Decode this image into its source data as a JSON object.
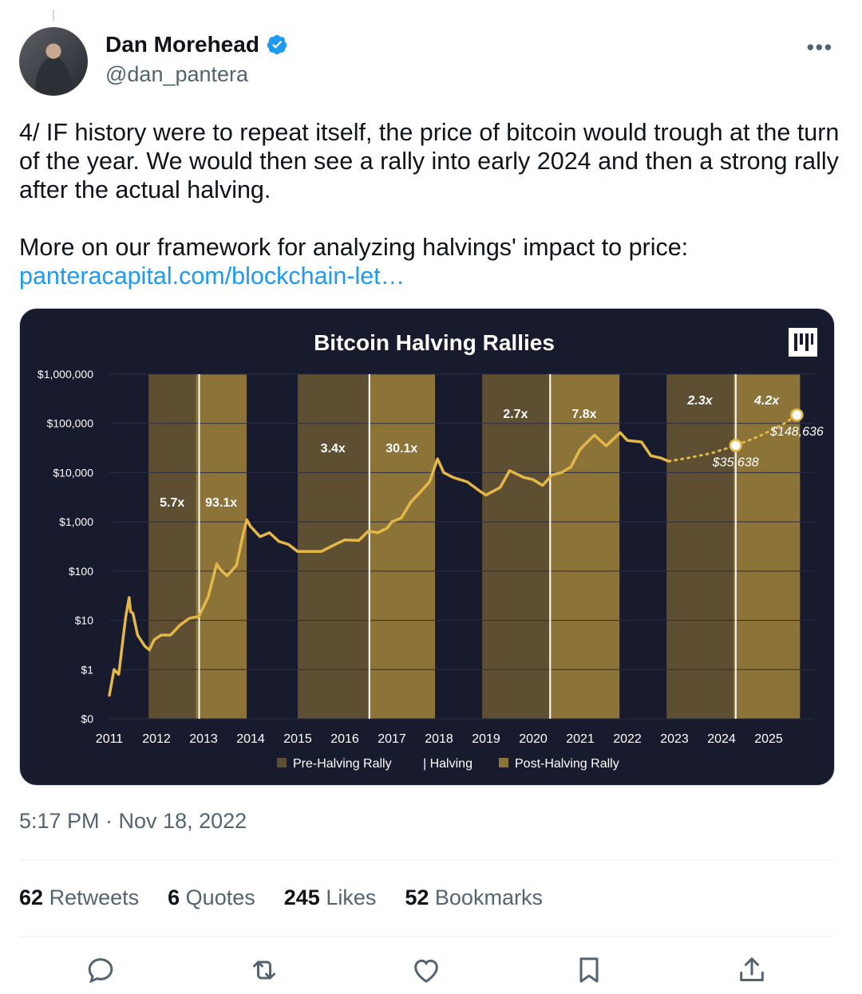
{
  "author": {
    "display_name": "Dan Morehead",
    "handle": "@dan_pantera"
  },
  "more_label": "•••",
  "tweet": {
    "paragraph1": "4/ IF history were to repeat itself, the price of bitcoin would trough at the turn of the year.  We would then see a rally into early 2024 and then a strong rally after the actual halving.",
    "paragraph2": "More on our framework for analyzing halvings' impact to price:",
    "link_text": "panteracapital.com/blockchain-let…"
  },
  "chart_data": {
    "type": "line",
    "title": "Bitcoin Halving Rallies",
    "logo": "Pantera logo",
    "y_scale": "log",
    "y_ticks": [
      "$0",
      "$1",
      "$10",
      "$100",
      "$1,000",
      "$10,000",
      "$100,000",
      "$1,000,000"
    ],
    "x_ticks": [
      "2011",
      "2012",
      "2013",
      "2014",
      "2015",
      "2016",
      "2017",
      "2018",
      "2019",
      "2020",
      "2021",
      "2022",
      "2023",
      "2024",
      "2025"
    ],
    "legend": [
      {
        "label": "Pre-Halving Rally",
        "color": "#5e4f33"
      },
      {
        "label": "| Halving",
        "color": "#ffffff"
      },
      {
        "label": "Post-Halving Rally",
        "color": "#8c7338"
      }
    ],
    "halving_dates": [
      "2012-11-28",
      "2016-07-09",
      "2020-05-11",
      "2024-04-20"
    ],
    "rallies": [
      {
        "phase": "pre",
        "start": "2011-11",
        "end": "2012-11",
        "label": "5.7x"
      },
      {
        "phase": "post",
        "start": "2012-11",
        "end": "2013-12",
        "label": "93.1x"
      },
      {
        "phase": "pre",
        "start": "2015-01",
        "end": "2016-07",
        "label": "3.4x"
      },
      {
        "phase": "post",
        "start": "2016-07",
        "end": "2017-12",
        "label": "30.1x"
      },
      {
        "phase": "pre",
        "start": "2018-12",
        "end": "2020-05",
        "label": "2.7x"
      },
      {
        "phase": "post",
        "start": "2020-05",
        "end": "2021-11",
        "label": "7.8x"
      },
      {
        "phase": "pre",
        "start": "2022-11",
        "end": "2024-04",
        "label": "2.3x"
      },
      {
        "phase": "post",
        "start": "2024-04",
        "end": "2025-09",
        "label": "4.2x"
      }
    ],
    "series": [
      {
        "name": "Bitcoin price",
        "x": [
          2011.0,
          2011.1,
          2011.2,
          2011.3,
          2011.35,
          2011.42,
          2011.45,
          2011.5,
          2011.6,
          2011.75,
          2011.85,
          2011.95,
          2012.1,
          2012.3,
          2012.5,
          2012.7,
          2012.9,
          2013.1,
          2013.28,
          2013.35,
          2013.5,
          2013.7,
          2013.85,
          2013.92,
          2014.0,
          2014.2,
          2014.4,
          2014.6,
          2014.8,
          2015.0,
          2015.1,
          2015.5,
          2015.8,
          2016.0,
          2016.3,
          2016.5,
          2016.7,
          2016.9,
          2017.0,
          2017.2,
          2017.4,
          2017.6,
          2017.8,
          2017.97,
          2018.1,
          2018.3,
          2018.6,
          2018.9,
          2019.0,
          2019.3,
          2019.5,
          2019.8,
          2020.0,
          2020.2,
          2020.4,
          2020.6,
          2020.8,
          2021.0,
          2021.3,
          2021.55,
          2021.85,
          2022.0,
          2022.3,
          2022.5,
          2022.7,
          2022.88
        ],
        "y": [
          0.3,
          1.0,
          0.8,
          5,
          12,
          29,
          15,
          14,
          5,
          3,
          2.5,
          4,
          5,
          5,
          8,
          11,
          12,
          30,
          140,
          110,
          80,
          130,
          600,
          1100,
          800,
          500,
          600,
          400,
          350,
          250,
          250,
          250,
          350,
          430,
          420,
          650,
          600,
          750,
          1000,
          1200,
          2500,
          4000,
          6500,
          19000,
          10000,
          8000,
          6500,
          4000,
          3500,
          5000,
          11000,
          8000,
          7200,
          5500,
          9000,
          10000,
          13000,
          30000,
          58000,
          35000,
          65000,
          45000,
          42000,
          22000,
          20000,
          17000
        ]
      },
      {
        "name": "Projection",
        "x": [
          2022.88,
          2023.3,
          2023.8,
          2024.3,
          2024.8,
          2025.3,
          2025.6
        ],
        "y": [
          17000,
          20000,
          25000,
          35638,
          55000,
          95000,
          148636
        ]
      }
    ],
    "annotations": [
      {
        "x": 2024.3,
        "y": 35638,
        "label": "$35,638"
      },
      {
        "x": 2025.6,
        "y": 148636,
        "label": "$148,636"
      }
    ],
    "colors": {
      "background": "#181a2d",
      "line": "#e3b748",
      "pre_band": "#5e4f33",
      "post_band": "#8c7338",
      "grid": "#2b2d44"
    }
  },
  "timestamp": "5:17 PM · Nov 18, 2022",
  "stats": {
    "retweets": {
      "count": "62",
      "label": "Retweets"
    },
    "quotes": {
      "count": "6",
      "label": "Quotes"
    },
    "likes": {
      "count": "245",
      "label": "Likes"
    },
    "bookmarks": {
      "count": "52",
      "label": "Bookmarks"
    }
  },
  "actions": [
    "reply-icon",
    "retweet-icon",
    "like-icon",
    "bookmark-icon",
    "share-icon"
  ]
}
